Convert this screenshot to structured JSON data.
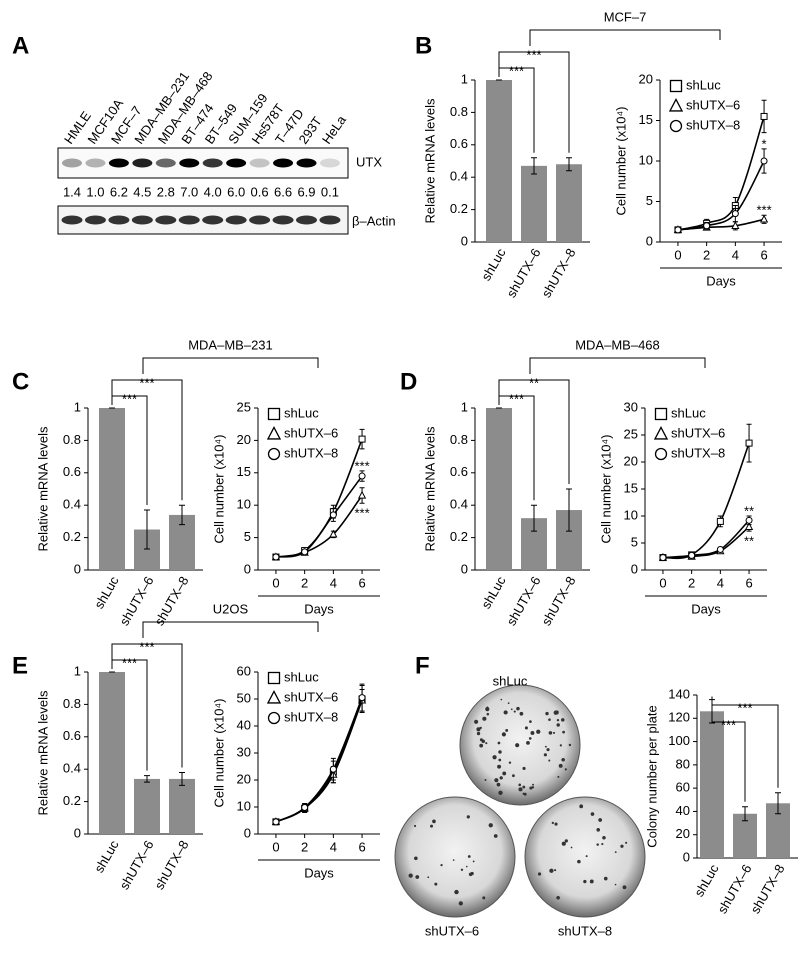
{
  "panel_labels": [
    "A",
    "B",
    "C",
    "D",
    "E",
    "F"
  ],
  "western_blot": {
    "cell_lines": [
      "HMLE",
      "MCF10A",
      "MCF–7",
      "MDA–MB–231",
      "MDA–MB–468",
      "BT–474",
      "BT–549",
      "SUM–159",
      "Hs578T",
      "T–47D",
      "293T",
      "HeLa"
    ],
    "utx_levels": [
      "1.4",
      "1.0",
      "6.2",
      "4.5",
      "2.8",
      "7.0",
      "4.0",
      "6.0",
      "0.6",
      "6.6",
      "6.9",
      "0.1"
    ],
    "protein_labels": [
      "UTX",
      "β–Actin"
    ]
  },
  "colony_plates": [
    "shLuc",
    "shUTX–6",
    "shUTX–8"
  ],
  "chart_data": [
    {
      "type": "bar",
      "title": "MCF–7",
      "ylabel": "Relative mRNA levels",
      "categories": [
        "shLuc",
        "shUTX–6",
        "shUTX–8"
      ],
      "values": [
        1,
        0.47,
        0.48
      ],
      "errors": [
        0,
        0.05,
        0.04
      ],
      "color": "#8c8c8c",
      "ylim": [
        0,
        1
      ],
      "yticks": [
        0,
        0.2,
        0.4,
        0.6,
        0.8,
        1
      ],
      "significance": [
        "***",
        "***"
      ]
    },
    {
      "type": "line",
      "ylabel": "Cell number (x10⁴)",
      "xlabel": "Days",
      "x": [
        0,
        2,
        4,
        6
      ],
      "xlim": [
        -1.25,
        7.25
      ],
      "xticks": [
        0,
        2,
        4,
        6
      ],
      "ylim": [
        0,
        20
      ],
      "yticks": [
        0,
        5,
        10,
        15,
        20
      ],
      "series": [
        {
          "name": "shLuc",
          "marker": "square",
          "color": "#000000",
          "values": [
            1.5,
            2.3,
            4.5,
            15.5
          ],
          "errors": [
            0.2,
            0.5,
            1,
            2
          ]
        },
        {
          "name": "shUTX–6",
          "marker": "triangle",
          "color": "#000000",
          "values": [
            1.5,
            1.8,
            2.0,
            2.8
          ],
          "errors": [
            0.2,
            0.3,
            0.5,
            0.5
          ],
          "significance": "***"
        },
        {
          "name": "shUTX–8",
          "marker": "circle",
          "color": "#000000",
          "values": [
            1.5,
            2.0,
            3.5,
            10
          ],
          "errors": [
            0.2,
            0.4,
            1,
            1.5
          ],
          "significance": "*"
        }
      ]
    },
    {
      "type": "bar",
      "title": "MDA–MB–231",
      "ylabel": "Relative mRNA levels",
      "categories": [
        "shLuc",
        "shUTX–6",
        "shUTX–8"
      ],
      "values": [
        1,
        0.25,
        0.34
      ],
      "errors": [
        0,
        0.12,
        0.06
      ],
      "color": "#8c8c8c",
      "ylim": [
        0,
        1
      ],
      "yticks": [
        0,
        0.2,
        0.4,
        0.6,
        0.8,
        1
      ],
      "significance": [
        "***",
        "***"
      ]
    },
    {
      "type": "line",
      "ylabel": "Cell number (x10⁴)",
      "xlabel": "Days",
      "x": [
        0,
        2,
        4,
        6
      ],
      "xlim": [
        -1.25,
        7.25
      ],
      "xticks": [
        0,
        2,
        4,
        6
      ],
      "ylim": [
        0,
        25
      ],
      "yticks": [
        0,
        5,
        10,
        15,
        20,
        25
      ],
      "series": [
        {
          "name": "shLuc",
          "marker": "square",
          "color": "#000000",
          "values": [
            2,
            3,
            9,
            20.2
          ],
          "errors": [
            0.3,
            0.4,
            1,
            1.5
          ]
        },
        {
          "name": "shUTX–6",
          "marker": "triangle",
          "color": "#000000",
          "values": [
            2,
            2.7,
            5.5,
            11.5
          ],
          "errors": [
            0.3,
            0.3,
            0.5,
            1.2
          ],
          "significance": "***"
        },
        {
          "name": "shUTX–8",
          "marker": "circle",
          "color": "#000000",
          "values": [
            2,
            2.8,
            8.5,
            14.5
          ],
          "errors": [
            0.3,
            0.3,
            1,
            0.8
          ],
          "significance": "***"
        }
      ]
    },
    {
      "type": "bar",
      "title": "MDA–MB–468",
      "ylabel": "Relative mRNA levels",
      "categories": [
        "shLuc",
        "shUTX–6",
        "shUTX–8"
      ],
      "values": [
        1,
        0.32,
        0.37
      ],
      "errors": [
        0,
        0.08,
        0.13
      ],
      "color": "#8c8c8c",
      "ylim": [
        0,
        1
      ],
      "yticks": [
        0,
        0.2,
        0.4,
        0.6,
        0.8,
        1
      ],
      "significance": [
        "***",
        "**"
      ]
    },
    {
      "type": "line",
      "ylabel": "Cell number (x10⁴)",
      "xlabel": "Days",
      "x": [
        0,
        2,
        4,
        6
      ],
      "xlim": [
        -1.25,
        7.25
      ],
      "xticks": [
        0,
        2,
        4,
        6
      ],
      "ylim": [
        0,
        30
      ],
      "yticks": [
        0,
        5,
        10,
        15,
        20,
        25,
        30
      ],
      "series": [
        {
          "name": "shLuc",
          "marker": "square",
          "color": "#000000",
          "values": [
            2.3,
            2.8,
            9,
            23.5
          ],
          "errors": [
            0.3,
            0.5,
            1,
            3.5
          ]
        },
        {
          "name": "shUTX–6",
          "marker": "triangle",
          "color": "#000000",
          "values": [
            2.3,
            2.5,
            3.5,
            8
          ],
          "errors": [
            0.3,
            0.4,
            0.4,
            0.8
          ],
          "significance": "**"
        },
        {
          "name": "shUTX–8",
          "marker": "circle",
          "color": "#000000",
          "values": [
            2.3,
            2.7,
            3.8,
            9.2
          ],
          "errors": [
            0.3,
            0.5,
            0.4,
            0.8
          ],
          "significance": "**"
        }
      ]
    },
    {
      "type": "bar",
      "title": "U2OS",
      "ylabel": "Relative mRNA levels",
      "categories": [
        "shLuc",
        "shUTX–6",
        "shUTX–8"
      ],
      "values": [
        1,
        0.34,
        0.34
      ],
      "errors": [
        0,
        0.02,
        0.04
      ],
      "color": "#8c8c8c",
      "ylim": [
        0,
        1
      ],
      "yticks": [
        0,
        0.2,
        0.4,
        0.6,
        0.8,
        1
      ],
      "significance": [
        "***",
        "***"
      ]
    },
    {
      "type": "line",
      "ylabel": "Cell number (x10⁴)",
      "xlabel": "Days",
      "x": [
        0,
        2,
        4,
        6
      ],
      "xlim": [
        -1.25,
        7.25
      ],
      "xticks": [
        0,
        2,
        4,
        6
      ],
      "ylim": [
        0,
        60
      ],
      "yticks": [
        0,
        10,
        20,
        30,
        40,
        50,
        60
      ],
      "series": [
        {
          "name": "shLuc",
          "marker": "square",
          "color": "#000000",
          "values": [
            4.5,
            9.5,
            23,
            50
          ],
          "errors": [
            0.5,
            1.5,
            4,
            5
          ]
        },
        {
          "name": "shUTX–6",
          "marker": "triangle",
          "color": "#000000",
          "values": [
            4.5,
            9.5,
            22,
            49.5
          ],
          "errors": [
            0.5,
            1.5,
            3,
            4
          ]
        },
        {
          "name": "shUTX–8",
          "marker": "circle",
          "color": "#000000",
          "values": [
            4.5,
            9.8,
            24,
            50.5
          ],
          "errors": [
            0.5,
            1.5,
            4,
            5
          ]
        }
      ]
    },
    {
      "type": "bar",
      "ylabel": "Colony number per plate",
      "categories": [
        "shLuc",
        "shUTX–6",
        "shUTX–8"
      ],
      "values": [
        126,
        38,
        47
      ],
      "errors": [
        10,
        6,
        9
      ],
      "color": "#8c8c8c",
      "ylim": [
        0,
        140
      ],
      "yticks": [
        0,
        20,
        40,
        60,
        80,
        100,
        120,
        140
      ],
      "significance": [
        "***",
        "***"
      ]
    }
  ]
}
